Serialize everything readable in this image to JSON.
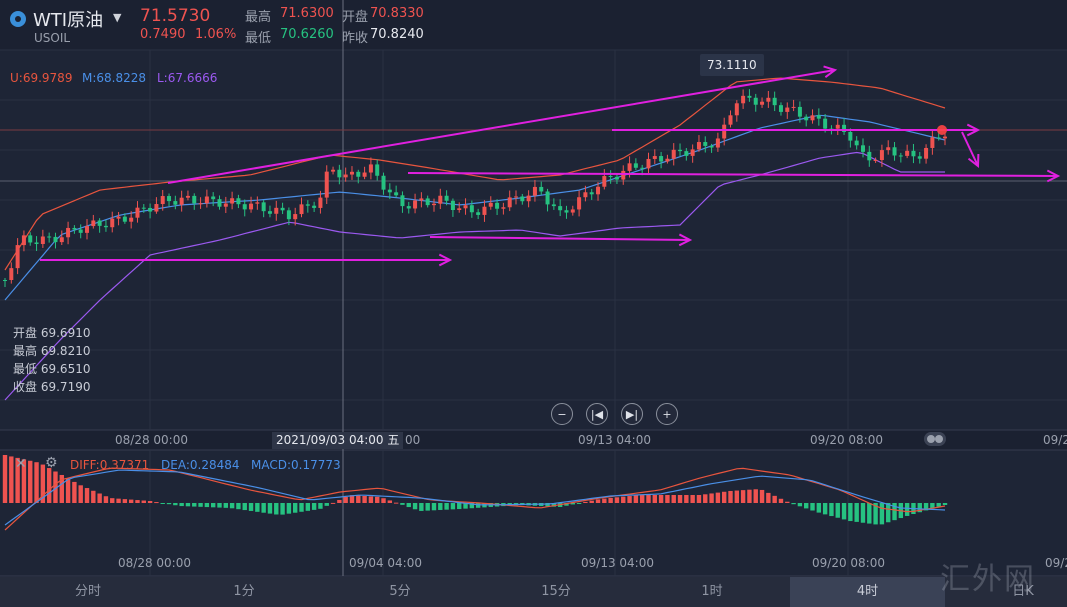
{
  "header": {
    "symbol_name": "WTI原油",
    "symbol_code": "USOIL",
    "last_price": "71.5730",
    "change": "0.7490",
    "change_pct": "1.06%",
    "stats": [
      {
        "label": "最高",
        "value": "71.6300",
        "color": "#ef5350"
      },
      {
        "label": "开盘",
        "value": "70.8330",
        "color": "#ef5350"
      },
      {
        "label": "最低",
        "value": "70.6260",
        "color": "#26c281"
      },
      {
        "label": "昨收",
        "value": "70.8240",
        "color": "#e6e8ee"
      }
    ]
  },
  "boll": [
    {
      "text": "U:69.9789",
      "color": "#e8553e"
    },
    {
      "text": "M:68.8228",
      "color": "#4a8fe7"
    },
    {
      "text": "L:67.6666",
      "color": "#9b59f0"
    }
  ],
  "ohlc": {
    "open_label": "开盘",
    "open": "69.6910",
    "high_label": "最高",
    "high": "69.8210",
    "low_label": "最低",
    "low": "69.6510",
    "close_label": "收盘",
    "close": "69.7190"
  },
  "price_tag": "73.1110",
  "crosshair_date": "2021/09/03 04:00 五",
  "main_time_labels": [
    "08/28 00:00",
    "00",
    "09/13 04:00",
    "09/20 08:00",
    "09/2"
  ],
  "macd_time_labels": [
    "08/28 00:00",
    "09/04 04:00",
    "09/13 04:00",
    "09/20 08:00",
    "09/2"
  ],
  "macd_legend": [
    {
      "text": "DIFF:0.37371",
      "color": "#e8553e"
    },
    {
      "text": "DEA:0.28484",
      "color": "#4a8fe7"
    },
    {
      "text": "MACD:0.17773",
      "color": "#4a8fe7"
    }
  ],
  "nav_buttons": [
    {
      "name": "zoom-out-icon",
      "glyph": "−"
    },
    {
      "name": "prev-icon",
      "glyph": "|◀"
    },
    {
      "name": "next-icon",
      "glyph": "▶|"
    },
    {
      "name": "zoom-in-icon",
      "glyph": "+"
    }
  ],
  "tabs": [
    {
      "label": "分时",
      "active": false
    },
    {
      "label": "1分",
      "active": false
    },
    {
      "label": "5分",
      "active": false
    },
    {
      "label": "15分",
      "active": false
    },
    {
      "label": "1时",
      "active": false
    },
    {
      "label": "4时",
      "active": true
    },
    {
      "label": "日K",
      "active": false
    }
  ],
  "watermark": "汇外网",
  "colors": {
    "up": "#ef5350",
    "down": "#26c281",
    "annotation": "#e020e0",
    "upper_band": "#e8553e",
    "mid_band": "#4a8fe7",
    "lower_band": "#9b59f0"
  }
}
